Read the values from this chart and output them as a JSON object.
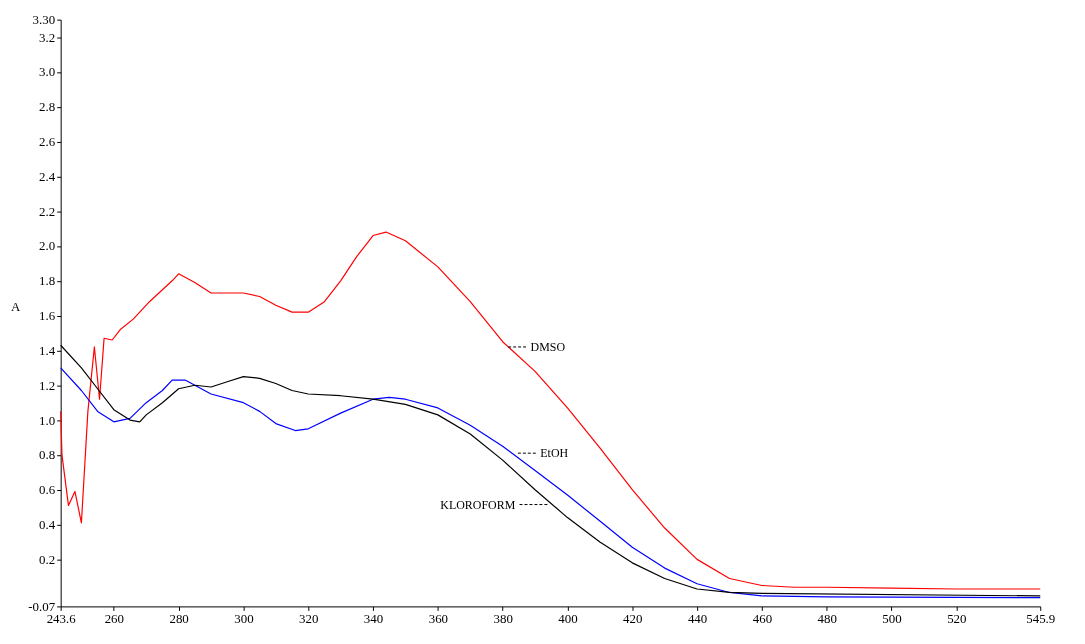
{
  "chart_data": {
    "type": "line",
    "ylabel": "A",
    "xlim": [
      243.6,
      545.9
    ],
    "ylim": [
      -0.07,
      3.3
    ],
    "xticks": [
      {
        "value": 243.6,
        "label": "243.6"
      },
      260,
      280,
      300,
      320,
      340,
      360,
      380,
      400,
      420,
      440,
      460,
      480,
      500,
      520,
      {
        "value": 545.9,
        "label": "545.9"
      }
    ],
    "yticks": [
      {
        "value": -0.07,
        "label": "-0.07"
      },
      0.2,
      0.4,
      0.6,
      0.8,
      {
        "value": 1,
        "label": "1.0"
      },
      1.2,
      1.4,
      1.6,
      1.8,
      {
        "value": 2,
        "label": "2.0"
      },
      2.2,
      2.4,
      2.6,
      2.8,
      {
        "value": 3,
        "label": "3.0"
      },
      3.2,
      {
        "value": 3.3,
        "label": "3.30"
      }
    ],
    "grid": false,
    "legend": false,
    "marker": "none",
    "line_style": "solid",
    "series": [
      {
        "color": "#ff0000",
        "x": [
          243.6,
          244,
          246,
          248,
          250,
          252,
          254,
          255.6,
          257,
          259.5,
          262,
          266,
          271,
          278,
          280,
          285,
          290,
          300,
          305,
          310,
          315,
          320,
          325,
          330,
          335,
          340,
          344,
          350,
          360,
          370,
          380,
          390,
          400,
          410,
          420,
          430,
          440,
          450,
          460,
          470,
          480,
          500,
          520,
          545.9
        ],
        "values": [
          1.05,
          0.8,
          0.51,
          0.59,
          0.41,
          1.05,
          1.42,
          1.12,
          1.47,
          1.46,
          1.52,
          1.58,
          1.68,
          1.8,
          1.84,
          1.79,
          1.73,
          1.73,
          1.71,
          1.66,
          1.62,
          1.62,
          1.68,
          1.8,
          1.94,
          2.06,
          2.08,
          2.03,
          1.88,
          1.68,
          1.45,
          1.28,
          1.07,
          0.84,
          0.6,
          0.38,
          0.2,
          0.09,
          0.05,
          0.04,
          0.04,
          0.035,
          0.03,
          0.03
        ]
      },
      {
        "color": "#0000ff",
        "x": [
          243.6,
          250,
          255,
          260,
          265,
          270,
          275,
          278,
          282,
          290,
          300,
          305,
          310,
          316,
          320,
          330,
          340,
          345,
          350,
          360,
          370,
          380,
          390,
          400,
          410,
          420,
          430,
          440,
          450,
          460,
          480,
          545.9
        ],
        "values": [
          1.3,
          1.17,
          1.05,
          0.99,
          1.01,
          1.1,
          1.17,
          1.23,
          1.23,
          1.15,
          1.1,
          1.05,
          0.98,
          0.94,
          0.95,
          1.04,
          1.12,
          1.13,
          1.12,
          1.07,
          0.97,
          0.85,
          0.71,
          0.57,
          0.42,
          0.27,
          0.15,
          0.06,
          0.01,
          -0.01,
          -0.015,
          -0.02
        ]
      },
      {
        "color": "#000000",
        "x": [
          243.6,
          250,
          255,
          260,
          265,
          268,
          270,
          275,
          280,
          285,
          290,
          295,
          300,
          305,
          310,
          315,
          320,
          330,
          340,
          350,
          360,
          370,
          380,
          390,
          400,
          410,
          420,
          430,
          440,
          450,
          460,
          545.9
        ],
        "values": [
          1.43,
          1.3,
          1.18,
          1.06,
          1.0,
          0.99,
          1.03,
          1.1,
          1.18,
          1.2,
          1.19,
          1.22,
          1.25,
          1.24,
          1.21,
          1.17,
          1.15,
          1.14,
          1.12,
          1.09,
          1.03,
          0.92,
          0.77,
          0.6,
          0.44,
          0.3,
          0.18,
          0.09,
          0.03,
          0.01,
          0.005,
          -0.01
        ]
      }
    ],
    "annotations": [
      {
        "text": "DMSO",
        "x": 381.7,
        "y": 1.42
      },
      {
        "text": "EtOH",
        "x": 384.7,
        "y": 0.81
      },
      {
        "text": "KLOROFORM",
        "x": 393.8,
        "y": 0.515
      }
    ]
  }
}
